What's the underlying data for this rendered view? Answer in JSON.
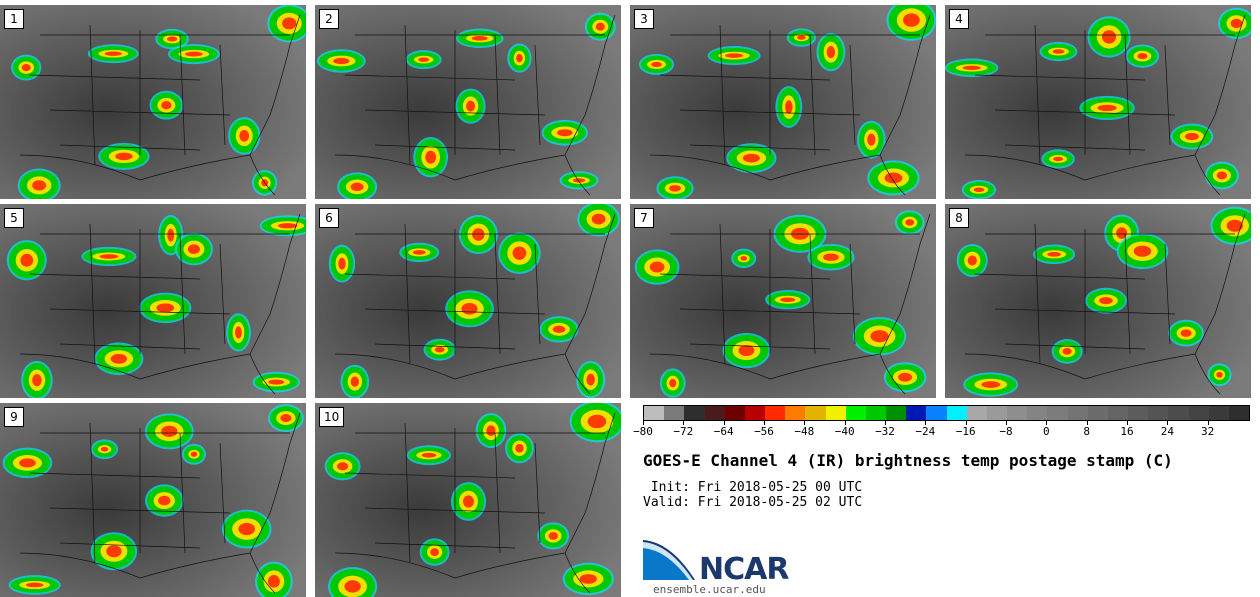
{
  "panels": [
    "1",
    "2",
    "3",
    "4",
    "5",
    "6",
    "7",
    "8",
    "9",
    "10"
  ],
  "colorbar": {
    "colors": [
      "#bdbdbd",
      "#7a7a7a",
      "#2e2e2e",
      "#4b1a1a",
      "#6e0000",
      "#b80000",
      "#ff2a00",
      "#ff7a00",
      "#e0b400",
      "#f0f000",
      "#00f000",
      "#00c800",
      "#009000",
      "#0018b4",
      "#0a82ff",
      "#00f0ff",
      "#a8a8a8",
      "#9a9a9a",
      "#8e8e8e",
      "#848484",
      "#7c7c7c",
      "#747474",
      "#6c6c6c",
      "#646464",
      "#5c5c5c",
      "#545454",
      "#4c4c4c",
      "#444444",
      "#3a3a3a",
      "#2e2e2e"
    ],
    "ticks": [
      "−80",
      "−72",
      "−64",
      "−56",
      "−48",
      "−40",
      "−32",
      "−24",
      "−16",
      "−8",
      "0",
      "8",
      "16",
      "24",
      "32"
    ]
  },
  "title": "GOES-E Channel 4 (IR) brightness temp postage stamp (C)",
  "init": " Init: Fri 2018-05-25 00 UTC",
  "valid": "Valid: Fri 2018-05-25 02 UTC",
  "logo_text": "NCAR",
  "url": "ensemble.ucar.edu"
}
